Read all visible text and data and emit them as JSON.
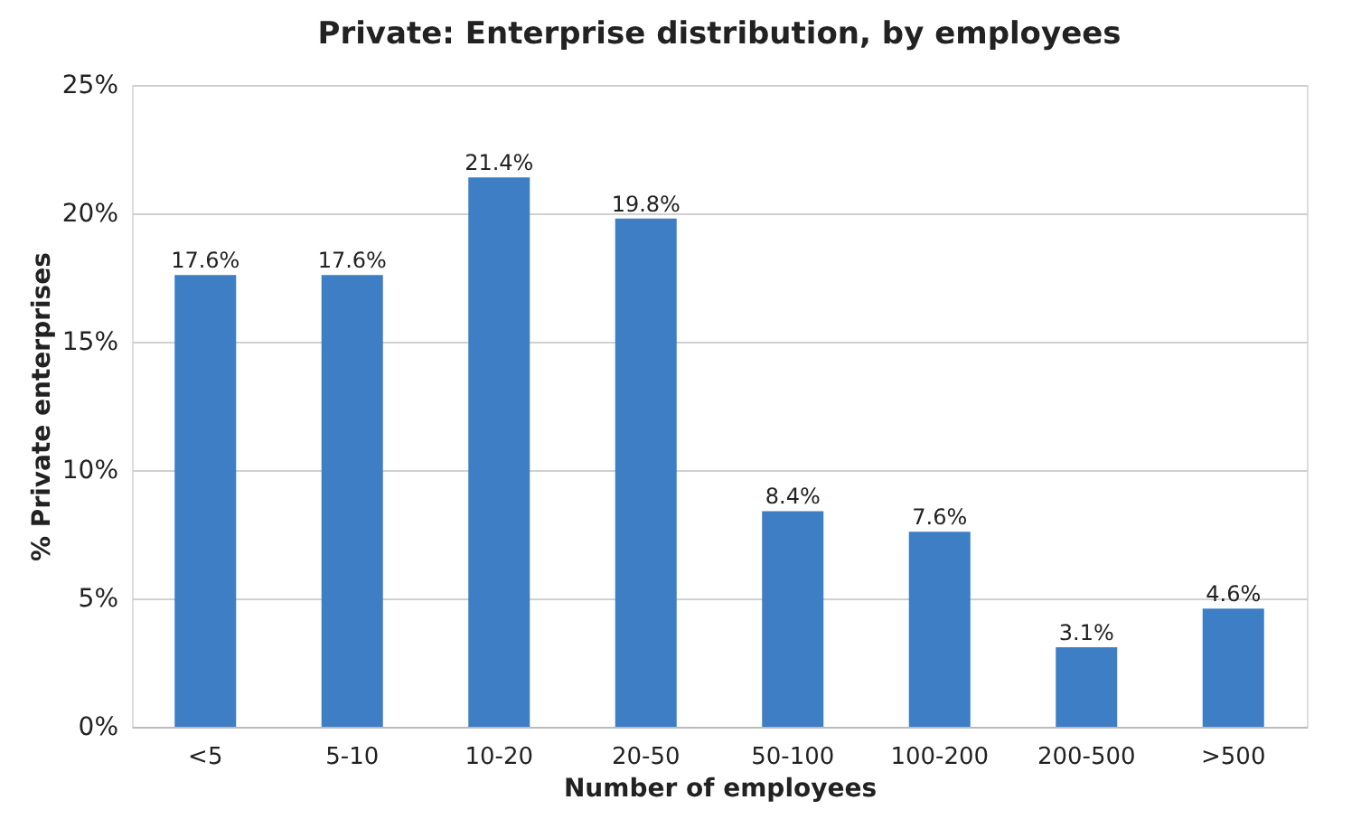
{
  "chart_data": {
    "type": "bar",
    "title": "Private: Enterprise distribution, by employees",
    "xlabel": "Number of employees",
    "ylabel": "% Private enterprises",
    "categories": [
      "<5",
      "5-10",
      "10-20",
      "20-50",
      "50-100",
      "100-200",
      "200-500",
      ">500"
    ],
    "values": [
      17.6,
      17.6,
      21.4,
      19.8,
      8.4,
      7.6,
      3.1,
      4.6
    ],
    "value_labels": [
      "17.6%",
      "17.6%",
      "21.4%",
      "19.8%",
      "8.4%",
      "7.6%",
      "3.1%",
      "4.6%"
    ],
    "color": "#3d7ec4",
    "ylim": [
      0,
      25
    ],
    "yticks": [
      {
        "value": 0,
        "label": "0%"
      },
      {
        "value": 5,
        "label": "5%"
      },
      {
        "value": 10,
        "label": "10%"
      },
      {
        "value": 15,
        "label": "15%"
      },
      {
        "value": 20,
        "label": "20%"
      },
      {
        "value": 25,
        "label": "25%"
      }
    ],
    "grid": "y"
  }
}
